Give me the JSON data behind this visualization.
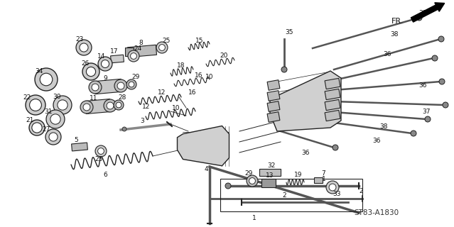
{
  "bg_color": "#ffffff",
  "line_color": "#222222",
  "fig_width": 6.39,
  "fig_height": 3.2,
  "dpi": 100,
  "diagram_code": "ST83-A1830",
  "fr_label": "FR."
}
